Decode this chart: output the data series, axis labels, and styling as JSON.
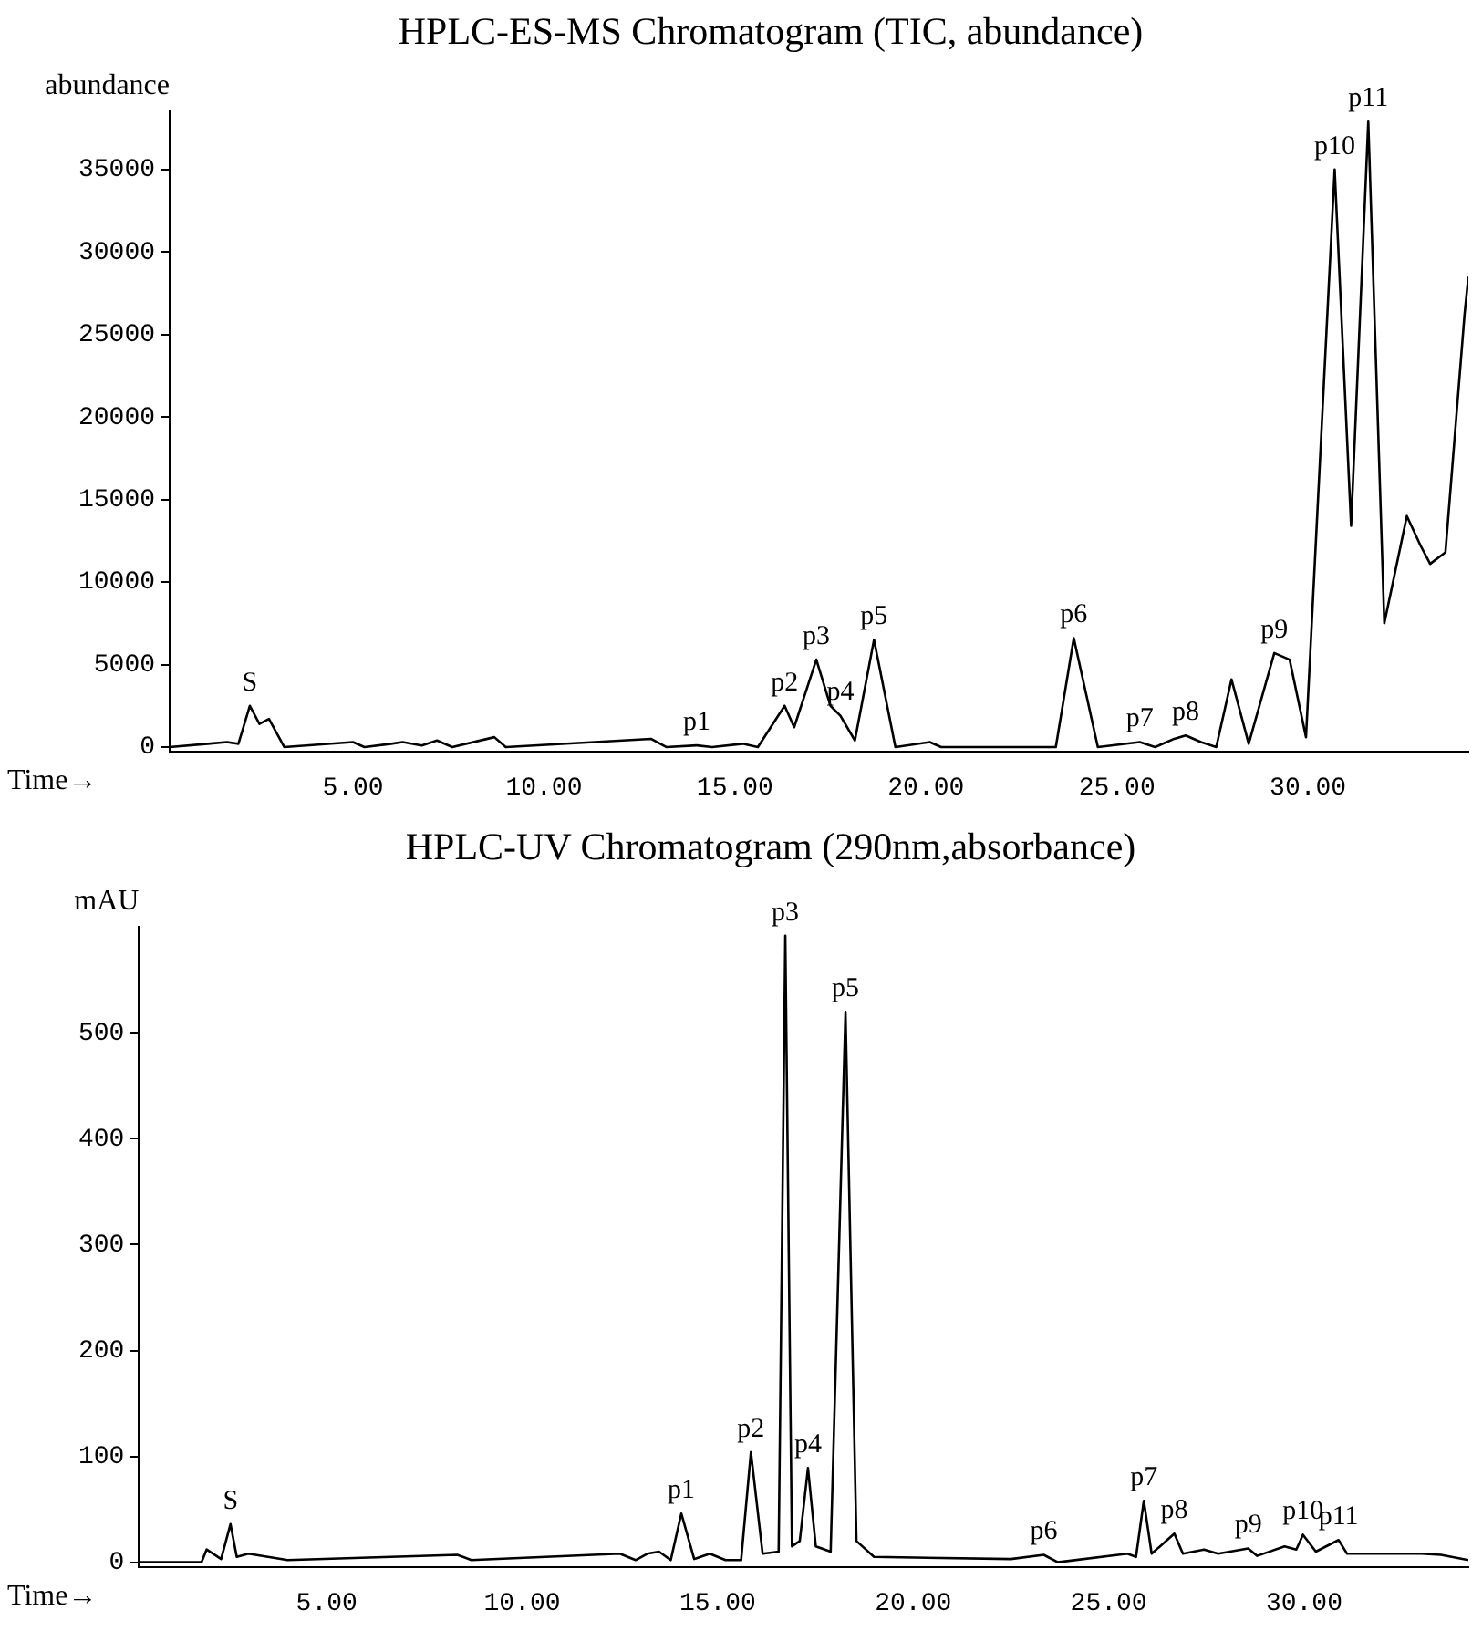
{
  "chart_data": [
    {
      "type": "line",
      "title": "HPLC-ES-MS Chromatogram (TIC, abundance)",
      "xlabel": "Time→",
      "ylabel": "abundance",
      "grid": false,
      "legend": false,
      "marker": "none",
      "line_style": "solid",
      "xlim": [
        0.2,
        34.2
      ],
      "ylim": [
        -300,
        38500
      ],
      "xticks": [
        {
          "value": 5,
          "label": "5.00"
        },
        {
          "value": 10,
          "label": "10.00"
        },
        {
          "value": 15,
          "label": "15.00"
        },
        {
          "value": 20,
          "label": "20.00"
        },
        {
          "value": 25,
          "label": "25.00"
        },
        {
          "value": 30,
          "label": "30.00"
        }
      ],
      "yticks": [
        0,
        5000,
        10000,
        15000,
        20000,
        25000,
        30000,
        35000
      ],
      "series": [
        {
          "color": "#000000",
          "x": [
            0.2,
            1.2,
            1.7,
            2.0,
            2.3,
            2.55,
            2.8,
            3.2,
            5.0,
            5.3,
            6.0,
            6.3,
            6.8,
            7.2,
            7.6,
            8.7,
            9.0,
            12.8,
            13.2,
            14.0,
            14.4,
            15.2,
            15.6,
            16.3,
            16.55,
            17.13,
            17.5,
            17.76,
            18.14,
            18.64,
            19.2,
            20.1,
            20.4,
            23.4,
            23.87,
            24.5,
            25.6,
            26.0,
            26.5,
            26.8,
            27.2,
            27.6,
            28.0,
            28.45,
            29.12,
            29.52,
            29.95,
            30.7,
            31.13,
            31.58,
            32.0,
            32.59,
            32.95,
            33.2,
            33.6,
            34.1,
            34.2
          ],
          "values": [
            0,
            200,
            300,
            200,
            2500,
            1400,
            1700,
            0,
            300,
            0,
            200,
            300,
            100,
            400,
            0,
            600,
            0,
            500,
            0,
            100,
            0,
            200,
            0,
            2500,
            1200,
            5300,
            2500,
            1900,
            400,
            6500,
            0,
            300,
            0,
            0,
            6600,
            0,
            300,
            0,
            500,
            700,
            300,
            0,
            4100,
            200,
            5700,
            5300,
            600,
            35000,
            13400,
            37900,
            7500,
            14000,
            12200,
            11100,
            11800,
            26200,
            28500
          ]
        }
      ],
      "annotations": [
        {
          "text": "S",
          "x": 2.3,
          "y": 2500
        },
        {
          "text": "p1",
          "x": 14.0,
          "y": 100
        },
        {
          "text": "p2",
          "x": 16.3,
          "y": 2500
        },
        {
          "text": "p3",
          "x": 17.13,
          "y": 5300
        },
        {
          "text": "p4",
          "x": 17.76,
          "y": 1900
        },
        {
          "text": "p5",
          "x": 18.64,
          "y": 6500
        },
        {
          "text": "p6",
          "x": 23.87,
          "y": 6600
        },
        {
          "text": "p7",
          "x": 25.6,
          "y": 300
        },
        {
          "text": "p8",
          "x": 26.8,
          "y": 700
        },
        {
          "text": "p9",
          "x": 29.12,
          "y": 5700
        },
        {
          "text": "p10",
          "x": 30.7,
          "y": 35000
        },
        {
          "text": "p11",
          "x": 31.58,
          "y": 37900
        }
      ]
    },
    {
      "type": "line",
      "title": "HPLC-UV Chromatogram (290nm,absorbance)",
      "xlabel": "Time→",
      "ylabel": "mAU",
      "grid": false,
      "legend": false,
      "marker": "none",
      "line_style": "solid",
      "xlim": [
        0.2,
        34.2
      ],
      "ylim": [
        -5,
        600
      ],
      "xticks": [
        {
          "value": 5,
          "label": "5.00"
        },
        {
          "value": 10,
          "label": "10.00"
        },
        {
          "value": 15,
          "label": "15.00"
        },
        {
          "value": 20,
          "label": "20.00"
        },
        {
          "value": 25,
          "label": "25.00"
        },
        {
          "value": 30,
          "label": "30.00"
        }
      ],
      "yticks": [
        0,
        100,
        200,
        300,
        400,
        500
      ],
      "series": [
        {
          "color": "#000000",
          "x": [
            0.2,
            1.8,
            1.93,
            2.3,
            2.54,
            2.7,
            3.0,
            4.0,
            8.34,
            8.7,
            12.5,
            12.9,
            13.2,
            13.5,
            13.8,
            14.07,
            14.4,
            14.8,
            15.2,
            15.6,
            15.85,
            16.15,
            16.56,
            16.73,
            16.9,
            17.1,
            17.31,
            17.51,
            17.89,
            18.27,
            18.55,
            19.0,
            22.5,
            23.34,
            23.7,
            25.48,
            25.7,
            25.9,
            26.1,
            26.68,
            26.9,
            27.44,
            27.8,
            28.57,
            28.8,
            29.5,
            29.8,
            29.97,
            30.3,
            30.88,
            31.1,
            33.0,
            33.5,
            34.2
          ],
          "values": [
            0,
            0,
            12,
            3,
            36,
            5,
            8,
            2,
            7,
            2,
            8,
            2,
            8,
            10,
            2,
            46,
            3,
            8,
            2,
            2,
            104,
            8,
            10,
            592,
            15,
            20,
            89,
            15,
            10,
            520,
            20,
            5,
            3,
            7,
            0,
            8,
            5,
            58,
            8,
            27,
            8,
            12,
            8,
            13,
            6,
            15,
            12,
            26,
            10,
            21,
            8,
            8,
            7,
            2
          ]
        }
      ],
      "annotations": [
        {
          "text": "S",
          "x": 2.54,
          "y": 36
        },
        {
          "text": "p1",
          "x": 14.07,
          "y": 46
        },
        {
          "text": "p2",
          "x": 15.85,
          "y": 104
        },
        {
          "text": "p3",
          "x": 16.73,
          "y": 592
        },
        {
          "text": "p4",
          "x": 17.31,
          "y": 89
        },
        {
          "text": "p5",
          "x": 18.27,
          "y": 520
        },
        {
          "text": "p6",
          "x": 23.34,
          "y": 7
        },
        {
          "text": "p7",
          "x": 25.9,
          "y": 58
        },
        {
          "text": "p8",
          "x": 26.68,
          "y": 27
        },
        {
          "text": "p9",
          "x": 28.57,
          "y": 13
        },
        {
          "text": "p10",
          "x": 29.97,
          "y": 26
        },
        {
          "text": "p11",
          "x": 30.88,
          "y": 21
        }
      ]
    }
  ]
}
